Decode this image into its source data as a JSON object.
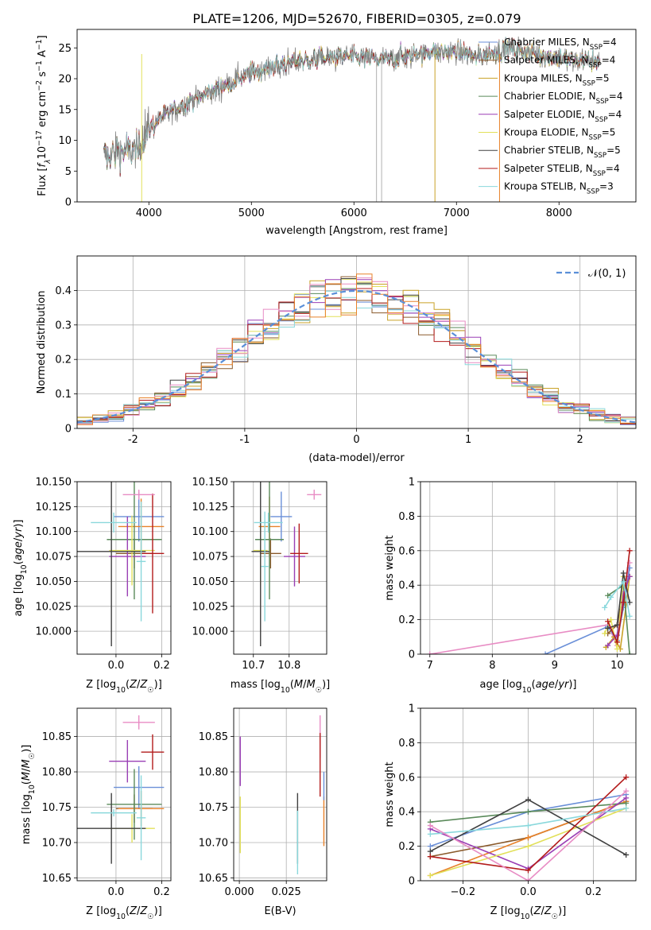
{
  "title": "PLATE=1206, MJD=52670, FIBERID=0305, z=0.079",
  "colors": {
    "chabrier_miles": "#6a8fd8",
    "salpeter_miles": "#8a5a2b",
    "kroupa_miles": "#c9a227",
    "chabrier_elodie": "#5a8a5a",
    "salpeter_elodie": "#9a3fb5",
    "kroupa_elodie": "#e2e05a",
    "chabrier_stelib": "#404040",
    "salpeter_stelib": "#b31b1b",
    "kroupa_stelib": "#8ad8dc",
    "pink": "#e88cc4",
    "orange": "#e8822a",
    "gaussian": "#5a8fd8",
    "data_grey": "#808080"
  },
  "chart_data": [
    {
      "id": "spectrum",
      "type": "line",
      "xlabel": "wavelength [Angstrom, rest frame]",
      "ylabel": "Flux [f_λ10^-17 erg cm^-2 s^-1 A^-1]",
      "xlim": [
        3300,
        8750
      ],
      "ylim": [
        0,
        28
      ],
      "xticks": [
        4000,
        5000,
        6000,
        7000,
        8000
      ],
      "yticks": [
        0,
        5,
        10,
        15,
        20,
        25
      ],
      "grid": false,
      "legend_position": "top-right",
      "legend": [
        {
          "label": "Chabrier MILES, N_SSP=4",
          "color": "#6a8fd8"
        },
        {
          "label": "Salpeter MILES, N_SSP=4",
          "color": "#8a5a2b"
        },
        {
          "label": "Kroupa MILES, N_SSP=5",
          "color": "#c9a227"
        },
        {
          "label": "Chabrier ELODIE, N_SSP=4",
          "color": "#5a8a5a"
        },
        {
          "label": "Salpeter ELODIE, N_SSP=4",
          "color": "#9a3fb5"
        },
        {
          "label": "Kroupa ELODIE, N_SSP=5",
          "color": "#e2e05a"
        },
        {
          "label": "Chabrier STELIB, N_SSP=5",
          "color": "#404040"
        },
        {
          "label": "Salpeter STELIB, N_SSP=4",
          "color": "#b31b1b"
        },
        {
          "label": "Kroupa STELIB, N_SSP=3",
          "color": "#8ad8dc"
        }
      ],
      "continuum": {
        "x": [
          3550,
          3700,
          3900,
          3950,
          4100,
          4300,
          4500,
          4800,
          5000,
          5200,
          5500,
          5800,
          6000,
          6300,
          6600,
          7000,
          7200,
          7500,
          7800,
          8100,
          8400
        ],
        "y": [
          7,
          8.5,
          8,
          11,
          13.5,
          15.5,
          17,
          19.5,
          21,
          22,
          23,
          23.5,
          23.5,
          23,
          24,
          24.5,
          23.5,
          25,
          24,
          23,
          23
        ]
      }
    },
    {
      "id": "residuals",
      "type": "line",
      "xlabel": "(data-model)/error",
      "ylabel": "Normed distribution",
      "xlim": [
        -2.5,
        2.5
      ],
      "ylim": [
        0,
        0.5
      ],
      "xticks": [
        -2,
        -1,
        0,
        1,
        2
      ],
      "yticks": [
        0.0,
        0.1,
        0.2,
        0.3,
        0.4
      ],
      "grid": true,
      "legend_position": "top-right",
      "legend": [
        {
          "label": "𝒩(0, 1)",
          "color": "#5a8fd8",
          "style": "dashed"
        }
      ],
      "bins": 36
    },
    {
      "id": "age_vs_Z",
      "type": "scatter",
      "xlabel": "Z [log10(Z/Z☉)]",
      "ylabel": "age  [log10(age/yr)]",
      "xlim": [
        -0.17,
        0.24
      ],
      "ylim": [
        9.977,
        10.15
      ],
      "xticks": [
        0.0,
        0.2
      ],
      "xticklabels": [
        "0.0",
        "0.2"
      ],
      "yticks": [
        10.0,
        10.025,
        10.05,
        10.075,
        10.1,
        10.125,
        10.15
      ],
      "yticklabels": [
        "10.000",
        "10.025",
        "10.050",
        "10.075",
        "10.100",
        "10.125",
        "10.150"
      ],
      "grid": true,
      "points": [
        {
          "x": 0.1,
          "y": 10.115,
          "xerr": 0.11,
          "yerr": 0.025,
          "color": "#6a8fd8"
        },
        {
          "x": 0.08,
          "y": 10.078,
          "xerr": 0.08,
          "yerr": 0.015,
          "color": "#8a5a2b"
        },
        {
          "x": 0.11,
          "y": 10.105,
          "xerr": 0.1,
          "yerr": 0.028,
          "color": "#e8822a"
        },
        {
          "x": 0.08,
          "y": 10.092,
          "xerr": 0.12,
          "yerr": 0.06,
          "color": "#5a8a5a"
        },
        {
          "x": 0.05,
          "y": 10.075,
          "xerr": 0.08,
          "yerr": 0.04,
          "color": "#9a3fb5"
        },
        {
          "x": 0.07,
          "y": 10.081,
          "xerr": 0.1,
          "yerr": 0.035,
          "color": "#e2e05a"
        },
        {
          "x": -0.02,
          "y": 10.08,
          "xerr": 0.15,
          "yerr": 0.095,
          "color": "#404040"
        },
        {
          "x": 0.16,
          "y": 10.078,
          "xerr": 0.05,
          "yerr": 0.06,
          "color": "#b31b1b"
        },
        {
          "x": -0.01,
          "y": 10.109,
          "xerr": 0.1,
          "yerr": 0.01,
          "color": "#8ad8dc"
        },
        {
          "x": 0.11,
          "y": 10.07,
          "xerr": 0.02,
          "yerr": 0.06,
          "color": "#8ad8dc"
        },
        {
          "x": 0.1,
          "y": 10.137,
          "xerr": 0.07,
          "yerr": 0.005,
          "color": "#e88cc4"
        }
      ]
    },
    {
      "id": "age_vs_mass",
      "type": "scatter",
      "xlabel": "mass [log10(M/M☉)]",
      "xlim": [
        10.645,
        10.905
      ],
      "ylim": [
        9.977,
        10.15
      ],
      "xticks": [
        10.7,
        10.8
      ],
      "xticklabels": [
        "10.7",
        "10.8"
      ],
      "yticks": [
        10.0,
        10.025,
        10.05,
        10.075,
        10.1,
        10.125,
        10.15
      ],
      "yticklabels": [
        "10.000",
        "10.025",
        "10.050",
        "10.075",
        "10.100",
        "10.125",
        "10.150"
      ],
      "grid": true,
      "points": [
        {
          "x": 10.778,
          "y": 10.115,
          "xerr": 0.03,
          "yerr": 0.025,
          "color": "#6a8fd8"
        },
        {
          "x": 10.748,
          "y": 10.078,
          "xerr": 0.03,
          "yerr": 0.015,
          "color": "#8a5a2b"
        },
        {
          "x": 10.745,
          "y": 10.105,
          "xerr": 0.03,
          "yerr": 0.03,
          "color": "#e8822a"
        },
        {
          "x": 10.745,
          "y": 10.092,
          "xerr": 0.04,
          "yerr": 0.06,
          "color": "#5a8a5a"
        },
        {
          "x": 10.815,
          "y": 10.075,
          "xerr": 0.03,
          "yerr": 0.03,
          "color": "#9a3fb5"
        },
        {
          "x": 10.72,
          "y": 10.081,
          "xerr": 0.02,
          "yerr": 0.035,
          "color": "#e2e05a"
        },
        {
          "x": 10.72,
          "y": 10.08,
          "xerr": 0.025,
          "yerr": 0.095,
          "color": "#404040"
        },
        {
          "x": 10.828,
          "y": 10.078,
          "xerr": 0.025,
          "yerr": 0.03,
          "color": "#b31b1b"
        },
        {
          "x": 10.742,
          "y": 10.109,
          "xerr": 0.04,
          "yerr": 0.01,
          "color": "#8ad8dc"
        },
        {
          "x": 10.732,
          "y": 10.065,
          "xerr": 0.01,
          "yerr": 0.055,
          "color": "#8ad8dc"
        },
        {
          "x": 10.87,
          "y": 10.137,
          "xerr": 0.02,
          "yerr": 0.005,
          "color": "#e88cc4"
        }
      ]
    },
    {
      "id": "weight_vs_age",
      "type": "line",
      "xlabel": "age  [log10(age/yr)]",
      "ylabel": "mass weight",
      "xlim": [
        6.85,
        10.3
      ],
      "ylim": [
        0,
        1.0
      ],
      "xticks": [
        7,
        8,
        9,
        10
      ],
      "yticks": [
        0.0,
        0.2,
        0.4,
        0.6,
        0.8,
        1.0
      ],
      "grid": true,
      "series": [
        {
          "color": "#e88cc4",
          "x": [
            7.0,
            9.85,
            10.0,
            10.1,
            10.2
          ],
          "y": [
            0.0,
            0.17,
            0.05,
            0.3,
            0.53
          ]
        },
        {
          "color": "#6a8fd8",
          "x": [
            8.85,
            9.85,
            10.0,
            10.1,
            10.2
          ],
          "y": [
            0.0,
            0.16,
            0.08,
            0.27,
            0.5
          ]
        },
        {
          "color": "#8a5a2b",
          "x": [
            9.85,
            10.0,
            10.1,
            10.2
          ],
          "y": [
            0.12,
            0.17,
            0.35,
            0.45
          ]
        },
        {
          "color": "#c9a227",
          "x": [
            9.82,
            9.95,
            10.05,
            10.15,
            10.2
          ],
          "y": [
            0.04,
            0.1,
            0.03,
            0.3,
            0.45
          ]
        },
        {
          "color": "#5a8a5a",
          "x": [
            9.85,
            10.1,
            10.2
          ],
          "y": [
            0.34,
            0.4,
            0.0
          ]
        },
        {
          "color": "#9a3fb5",
          "x": [
            9.85,
            10.0,
            10.1,
            10.2
          ],
          "y": [
            0.05,
            0.11,
            0.35,
            0.45
          ]
        },
        {
          "color": "#e2e05a",
          "x": [
            9.8,
            9.9,
            10.0,
            10.1
          ],
          "y": [
            0.12,
            0.2,
            0.03,
            0.45
          ]
        },
        {
          "color": "#404040",
          "x": [
            9.85,
            10.0,
            10.1,
            10.2
          ],
          "y": [
            0.15,
            0.17,
            0.47,
            0.3
          ]
        },
        {
          "color": "#b31b1b",
          "x": [
            9.85,
            10.0,
            10.1,
            10.2
          ],
          "y": [
            0.19,
            0.07,
            0.3,
            0.6
          ]
        },
        {
          "color": "#8ad8dc",
          "x": [
            9.8,
            9.9,
            10.1,
            10.2
          ],
          "y": [
            0.27,
            0.33,
            0.42,
            0.22
          ]
        }
      ]
    },
    {
      "id": "mass_vs_Z",
      "type": "scatter",
      "xlabel": "Z [log10(Z/Z☉)]",
      "ylabel": "mass [log10(M/M☉)]",
      "xlim": [
        -0.17,
        0.24
      ],
      "ylim": [
        10.646,
        10.89
      ],
      "xticks": [
        0.0,
        0.2
      ],
      "xticklabels": [
        "0.0",
        "0.2"
      ],
      "yticks": [
        10.65,
        10.7,
        10.75,
        10.8,
        10.85
      ],
      "yticklabels": [
        "10.65",
        "10.70",
        "10.75",
        "10.80",
        "10.85"
      ],
      "grid": true,
      "points": [
        {
          "x": 0.1,
          "y": 10.778,
          "xerr": 0.11,
          "yerr": 0.03,
          "color": "#6a8fd8"
        },
        {
          "x": 0.08,
          "y": 10.748,
          "xerr": 0.08,
          "yerr": 0.02,
          "color": "#8a5a2b"
        },
        {
          "x": 0.11,
          "y": 10.748,
          "xerr": 0.1,
          "yerr": 0.025,
          "color": "#e8822a"
        },
        {
          "x": 0.08,
          "y": 10.754,
          "xerr": 0.12,
          "yerr": 0.05,
          "color": "#5a8a5a"
        },
        {
          "x": 0.05,
          "y": 10.815,
          "xerr": 0.08,
          "yerr": 0.03,
          "color": "#9a3fb5"
        },
        {
          "x": 0.07,
          "y": 10.72,
          "xerr": 0.1,
          "yerr": 0.02,
          "color": "#e2e05a"
        },
        {
          "x": -0.02,
          "y": 10.72,
          "xerr": 0.15,
          "yerr": 0.05,
          "color": "#404040"
        },
        {
          "x": 0.16,
          "y": 10.828,
          "xerr": 0.05,
          "yerr": 0.025,
          "color": "#b31b1b"
        },
        {
          "x": -0.01,
          "y": 10.742,
          "xerr": 0.1,
          "yerr": 0.005,
          "color": "#8ad8dc"
        },
        {
          "x": 0.11,
          "y": 10.735,
          "xerr": 0.02,
          "yerr": 0.06,
          "color": "#8ad8dc"
        },
        {
          "x": 0.1,
          "y": 10.87,
          "xerr": 0.07,
          "yerr": 0.01,
          "color": "#e88cc4"
        }
      ]
    },
    {
      "id": "mass_vs_ebv",
      "type": "scatter",
      "xlabel": "E(B-V)",
      "xlim": [
        -0.003,
        0.0465
      ],
      "ylim": [
        10.646,
        10.89
      ],
      "xticks": [
        0.0,
        0.025
      ],
      "xticklabels": [
        "0.000",
        "0.025"
      ],
      "yticks": [
        10.65,
        10.7,
        10.75,
        10.8,
        10.85
      ],
      "yticklabels": [
        "10.65",
        "10.70",
        "10.75",
        "10.80",
        "10.85"
      ],
      "grid": true,
      "points": [
        {
          "x": 0.0005,
          "y": 10.815,
          "xerr": 0,
          "yerr": 0.035,
          "color": "#9a3fb5"
        },
        {
          "x": 0.0005,
          "y": 10.725,
          "xerr": 0,
          "yerr": 0.04,
          "color": "#e2e05a"
        },
        {
          "x": 0.031,
          "y": 10.72,
          "xerr": 0,
          "yerr": 0.05,
          "color": "#404040"
        },
        {
          "x": 0.031,
          "y": 10.7,
          "xerr": 0,
          "yerr": 0.045,
          "color": "#8ad8dc"
        },
        {
          "x": 0.043,
          "y": 10.85,
          "xerr": 0,
          "yerr": 0.03,
          "color": "#e88cc4"
        },
        {
          "x": 0.043,
          "y": 10.81,
          "xerr": 0,
          "yerr": 0.045,
          "color": "#b31b1b"
        },
        {
          "x": 0.045,
          "y": 10.73,
          "xerr": 0,
          "yerr": 0.035,
          "color": "#e8822a"
        },
        {
          "x": 0.045,
          "y": 10.78,
          "xerr": 0,
          "yerr": 0.02,
          "color": "#6a8fd8"
        }
      ]
    },
    {
      "id": "weight_vs_Z",
      "type": "line",
      "xlabel": "Z [log10(Z/Z☉)]",
      "ylabel": "mass weight",
      "xlim": [
        -0.33,
        0.33
      ],
      "ylim": [
        0,
        1.0
      ],
      "xticks": [
        -0.2,
        0.0,
        0.2
      ],
      "xticklabels": [
        "−0.2",
        "0.0",
        "0.2"
      ],
      "yticks": [
        0.0,
        0.2,
        0.4,
        0.6,
        0.8,
        1.0
      ],
      "grid": true,
      "series": [
        {
          "color": "#6a8fd8",
          "x": [
            -0.3,
            0.0,
            0.3
          ],
          "y": [
            0.2,
            0.4,
            0.5
          ]
        },
        {
          "color": "#8a5a2b",
          "x": [
            -0.3,
            0.0,
            0.3
          ],
          "y": [
            0.14,
            0.25,
            0.46
          ]
        },
        {
          "color": "#e8822a",
          "x": [
            -0.3,
            0.0,
            0.3
          ],
          "y": [
            0.03,
            0.25,
            0.46
          ]
        },
        {
          "color": "#5a8a5a",
          "x": [
            -0.3,
            0.0,
            0.3
          ],
          "y": [
            0.34,
            0.4,
            0.45
          ]
        },
        {
          "color": "#9a3fb5",
          "x": [
            -0.3,
            0.0,
            0.3
          ],
          "y": [
            0.3,
            0.07,
            0.48
          ]
        },
        {
          "color": "#e2e05a",
          "x": [
            -0.3,
            0.0,
            0.3
          ],
          "y": [
            0.03,
            0.2,
            0.42
          ]
        },
        {
          "color": "#404040",
          "x": [
            -0.3,
            0.0,
            0.3
          ],
          "y": [
            0.17,
            0.47,
            0.15
          ]
        },
        {
          "color": "#b31b1b",
          "x": [
            -0.3,
            0.0,
            0.3
          ],
          "y": [
            0.14,
            0.06,
            0.6
          ]
        },
        {
          "color": "#8ad8dc",
          "x": [
            -0.3,
            0.0,
            0.3
          ],
          "y": [
            0.27,
            0.32,
            0.42
          ]
        },
        {
          "color": "#e88cc4",
          "x": [
            -0.3,
            0.0,
            0.3
          ],
          "y": [
            0.32,
            0.0,
            0.52
          ]
        }
      ]
    }
  ]
}
